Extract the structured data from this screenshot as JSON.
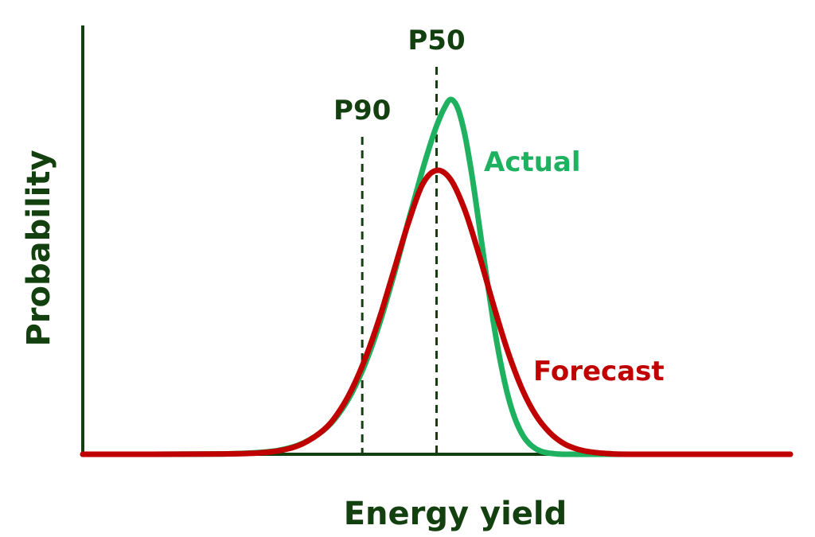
{
  "chart_data": {
    "type": "line",
    "title": "",
    "xlabel": "Energy yield",
    "ylabel": "Probability",
    "grid": false,
    "legend": "inline-labels",
    "xlim": [
      0,
      100
    ],
    "ylim": [
      0,
      1.05
    ],
    "series": [
      {
        "name": "Actual",
        "color": "#1db160",
        "x": [
          0,
          10,
          20,
          25,
          28,
          31,
          34,
          36,
          38,
          40,
          42,
          44,
          46,
          48,
          49,
          50,
          51,
          52,
          53,
          54,
          55,
          56,
          57,
          58,
          59,
          60,
          61,
          62,
          63,
          64,
          65,
          66,
          67,
          68,
          70,
          72,
          75,
          80,
          90,
          100
        ],
        "values": [
          0,
          0,
          0.001,
          0.005,
          0.012,
          0.03,
          0.067,
          0.109,
          0.172,
          0.259,
          0.372,
          0.508,
          0.656,
          0.8,
          0.866,
          0.925,
          0.972,
          1.0,
          0.975,
          0.9,
          0.786,
          0.65,
          0.509,
          0.377,
          0.264,
          0.172,
          0.105,
          0.06,
          0.032,
          0.016,
          0.007,
          0.003,
          0.001,
          0,
          0,
          0,
          0,
          0,
          0,
          0
        ]
      },
      {
        "name": "Forecast",
        "color": "#c00000",
        "x": [
          0,
          10,
          20,
          25,
          28,
          31,
          34,
          36,
          38,
          40,
          42,
          44,
          46,
          48,
          50,
          52,
          54,
          56,
          58,
          60,
          62,
          64,
          66,
          68,
          70,
          72,
          75,
          78,
          82,
          86,
          90,
          100
        ],
        "values": [
          0,
          0,
          0.001,
          0.004,
          0.011,
          0.029,
          0.068,
          0.114,
          0.182,
          0.274,
          0.388,
          0.52,
          0.651,
          0.76,
          0.8,
          0.774,
          0.688,
          0.563,
          0.424,
          0.294,
          0.188,
          0.111,
          0.061,
          0.03,
          0.014,
          0.006,
          0.001,
          0,
          0,
          0,
          0,
          0
        ]
      }
    ],
    "reference_lines": [
      {
        "label": "P90",
        "x": 39.5
      },
      {
        "label": "P50",
        "x": 50
      }
    ],
    "colors": {
      "axis": "#13400f",
      "text": "#13400f",
      "reference": "#13400f"
    }
  }
}
